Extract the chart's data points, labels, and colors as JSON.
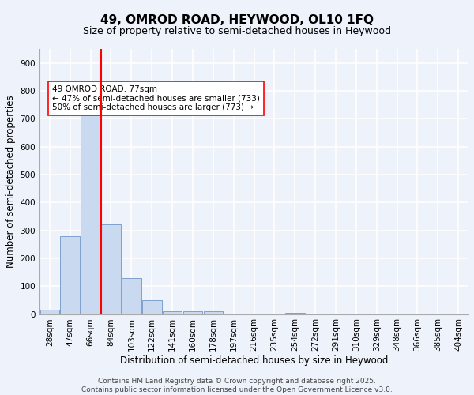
{
  "title1": "49, OMROD ROAD, HEYWOOD, OL10 1FQ",
  "title2": "Size of property relative to semi-detached houses in Heywood",
  "xlabel": "Distribution of semi-detached houses by size in Heywood",
  "ylabel": "Number of semi-detached properties",
  "categories": [
    "28sqm",
    "47sqm",
    "66sqm",
    "84sqm",
    "103sqm",
    "122sqm",
    "141sqm",
    "160sqm",
    "178sqm",
    "197sqm",
    "216sqm",
    "235sqm",
    "254sqm",
    "272sqm",
    "291sqm",
    "310sqm",
    "329sqm",
    "348sqm",
    "366sqm",
    "385sqm",
    "404sqm"
  ],
  "values": [
    15,
    280,
    720,
    320,
    130,
    50,
    10,
    10,
    10,
    0,
    0,
    0,
    5,
    0,
    0,
    0,
    0,
    0,
    0,
    0,
    0
  ],
  "bar_color": "#c9d9f0",
  "bar_edge_color": "#7096c8",
  "vline_x": 2.5,
  "vline_color": "red",
  "annotation_text": "49 OMROD ROAD: 77sqm\n← 47% of semi-detached houses are smaller (733)\n50% of semi-detached houses are larger (773) →",
  "annotation_box_color": "white",
  "annotation_box_edge": "red",
  "ylim": [
    0,
    950
  ],
  "yticks": [
    0,
    100,
    200,
    300,
    400,
    500,
    600,
    700,
    800,
    900
  ],
  "footer": "Contains HM Land Registry data © Crown copyright and database right 2025.\nContains public sector information licensed under the Open Government Licence v3.0.",
  "bg_color": "#eef2fa",
  "grid_color": "white",
  "title1_fontsize": 11,
  "title2_fontsize": 9,
  "axis_label_fontsize": 8.5,
  "tick_fontsize": 7.5,
  "annotation_fontsize": 7.5,
  "footer_fontsize": 6.5
}
